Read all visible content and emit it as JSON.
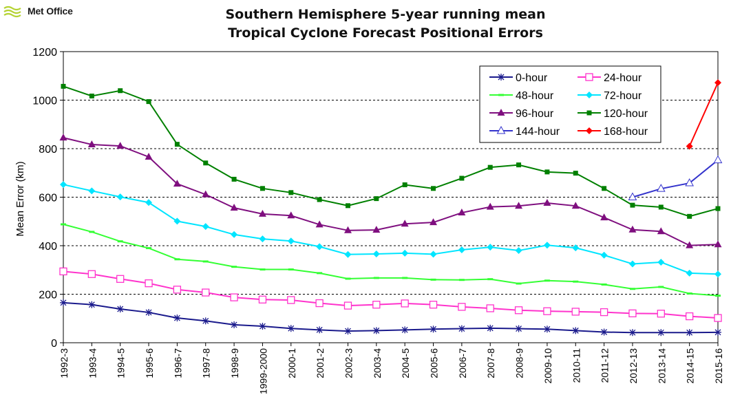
{
  "logo": {
    "text": "Met Office",
    "icon": "met-office-wave-icon",
    "color": "#b5d334"
  },
  "chart_data": {
    "type": "line",
    "title_line1": "Southern Hemisphere 5-year running mean",
    "title_line2": "Tropical Cyclone Forecast Positional Errors",
    "ylabel": "Mean Error (km)",
    "xlabel": "",
    "ylim": [
      0,
      1200
    ],
    "yticks": [
      0,
      200,
      400,
      600,
      800,
      1000,
      1200
    ],
    "grid": "horizontal dashed",
    "legend_position": "top-right",
    "categories": [
      "1992-3",
      "1993-4",
      "1994-5",
      "1995-6",
      "1996-7",
      "1997-8",
      "1998-9",
      "1999-2000",
      "2000-1",
      "2001-2",
      "2002-3",
      "2003-4",
      "2004-5",
      "2005-6",
      "2006-7",
      "2007-8",
      "2008-9",
      "2009-10",
      "2010-11",
      "2011-12",
      "2012-13",
      "2013-14",
      "2014-15",
      "2015-16"
    ],
    "series": [
      {
        "name": "0-hour",
        "color": "#1a1a8c",
        "marker": "asterisk",
        "values": [
          165,
          157,
          139,
          125,
          102,
          90,
          74,
          68,
          59,
          53,
          48,
          50,
          53,
          56,
          58,
          60,
          58,
          56,
          50,
          44,
          42,
          42,
          42,
          43
        ]
      },
      {
        "name": "24-hour",
        "color": "#ff33cc",
        "marker": "square-open",
        "values": [
          294,
          283,
          263,
          245,
          219,
          207,
          187,
          178,
          176,
          163,
          153,
          157,
          162,
          157,
          148,
          142,
          134,
          130,
          128,
          126,
          121,
          120,
          109,
          102
        ]
      },
      {
        "name": "48-hour",
        "color": "#33ff33",
        "marker": "dash",
        "values": [
          488,
          457,
          418,
          390,
          344,
          335,
          313,
          302,
          302,
          287,
          264,
          267,
          267,
          260,
          259,
          262,
          244,
          256,
          252,
          240,
          222,
          230,
          203,
          194
        ]
      },
      {
        "name": "72-hour",
        "color": "#00e5ff",
        "marker": "diamond",
        "values": [
          652,
          626,
          601,
          578,
          501,
          479,
          446,
          428,
          419,
          396,
          364,
          366,
          369,
          365,
          383,
          394,
          380,
          402,
          391,
          361,
          325,
          332,
          287,
          283
        ]
      },
      {
        "name": "96-hour",
        "color": "#7f0f7f",
        "marker": "triangle",
        "values": [
          845,
          817,
          811,
          766,
          655,
          611,
          556,
          531,
          524,
          487,
          463,
          465,
          490,
          496,
          536,
          560,
          564,
          576,
          564,
          516,
          466,
          459,
          401,
          405
        ]
      },
      {
        "name": "120-hour",
        "color": "#008000",
        "marker": "square",
        "values": [
          1057,
          1017,
          1039,
          994,
          818,
          741,
          674,
          636,
          619,
          590,
          565,
          594,
          651,
          636,
          678,
          723,
          733,
          704,
          699,
          636,
          567,
          559,
          521,
          553
        ]
      },
      {
        "name": "144-hour",
        "color": "#3333cc",
        "marker": "triangle-open",
        "values": [
          null,
          null,
          null,
          null,
          null,
          null,
          null,
          null,
          null,
          null,
          null,
          null,
          null,
          null,
          null,
          null,
          null,
          null,
          null,
          null,
          600,
          635,
          658,
          753
        ]
      },
      {
        "name": "168-hour",
        "color": "#ff0000",
        "marker": "diamond",
        "values": [
          null,
          null,
          null,
          null,
          null,
          null,
          null,
          null,
          null,
          null,
          null,
          null,
          null,
          null,
          null,
          null,
          null,
          null,
          null,
          null,
          null,
          null,
          810,
          1072
        ]
      }
    ]
  }
}
